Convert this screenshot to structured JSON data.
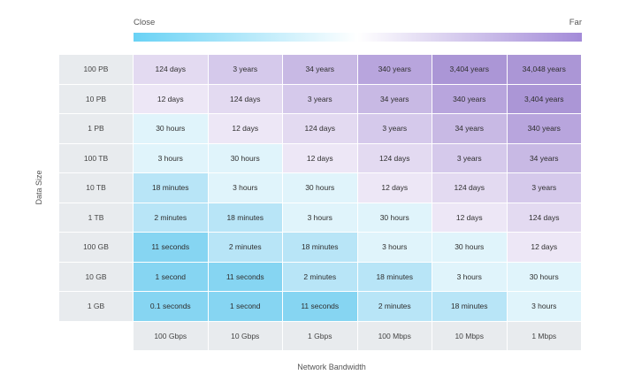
{
  "chart_data": {
    "type": "heatmap",
    "legend": {
      "left_label": "Close",
      "right_label": "Far",
      "colors": [
        "#69d2f5",
        "#ffffff",
        "#a38bd8"
      ]
    },
    "xlabel": "Network Bandwidth",
    "ylabel": "Data Size",
    "x_categories": [
      "100 Gbps",
      "10 Gbps",
      "1 Gbps",
      "100 Mbps",
      "10 Mbps",
      "1 Mbps"
    ],
    "y_categories": [
      "100 PB",
      "10 PB",
      "1 PB",
      "100 TB",
      "10 TB",
      "1 TB",
      "100 GB",
      "10 GB",
      "1 GB"
    ],
    "cells": [
      [
        "124 days",
        "3 years",
        "34 years",
        "340 years",
        "3,404 years",
        "34,048 years"
      ],
      [
        "12 days",
        "124 days",
        "3 years",
        "34 years",
        "340 years",
        "3,404 years"
      ],
      [
        "30 hours",
        "12 days",
        "124 days",
        "3 years",
        "34 years",
        "340 years"
      ],
      [
        "3 hours",
        "30 hours",
        "12 days",
        "124 days",
        "3 years",
        "34 years"
      ],
      [
        "18 minutes",
        "3 hours",
        "30 hours",
        "12 days",
        "124 days",
        "3 years"
      ],
      [
        "2 minutes",
        "18 minutes",
        "3 hours",
        "30 hours",
        "12 days",
        "124 days"
      ],
      [
        "11 seconds",
        "2 minutes",
        "18 minutes",
        "3 hours",
        "30 hours",
        "12 days"
      ],
      [
        "1 second",
        "11 seconds",
        "2 minutes",
        "18 minutes",
        "3 hours",
        "30 hours"
      ],
      [
        "0.1 seconds",
        "1 second",
        "11 seconds",
        "2 minutes",
        "18 minutes",
        "3 hours"
      ]
    ],
    "color_levels": [
      [
        2,
        3,
        4,
        5,
        6,
        6
      ],
      [
        1,
        2,
        3,
        4,
        5,
        6
      ],
      [
        -1,
        1,
        2,
        3,
        4,
        5
      ],
      [
        -1,
        -1,
        1,
        2,
        3,
        4
      ],
      [
        -2,
        -1,
        -1,
        1,
        2,
        3
      ],
      [
        -2,
        -2,
        -1,
        -1,
        1,
        2
      ],
      [
        -4,
        -2,
        -2,
        -1,
        -1,
        1
      ],
      [
        -4,
        -4,
        -2,
        -2,
        -1,
        -1
      ],
      [
        -4,
        -4,
        -4,
        -2,
        -2,
        -1
      ]
    ],
    "level_colors": {
      "-4": "#86d5f2",
      "-2": "#b8e5f7",
      "-1": "#e0f4fb",
      "1": "#ede7f6",
      "2": "#e3daf1",
      "3": "#d5c9eb",
      "4": "#c8b9e4",
      "5": "#b8a5dd",
      "6": "#ab96d6"
    }
  }
}
